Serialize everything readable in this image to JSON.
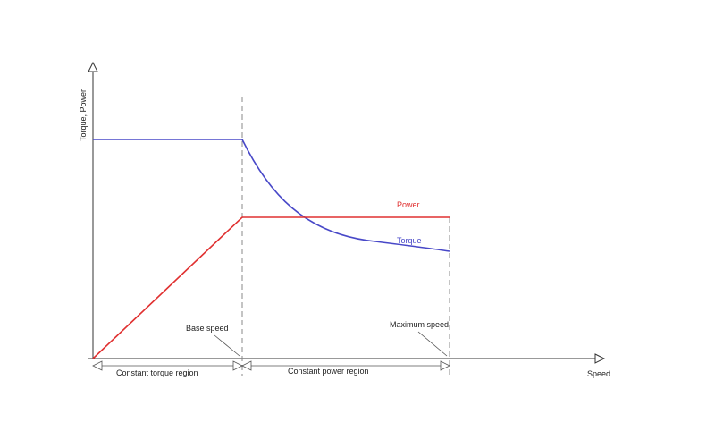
{
  "diagram": {
    "y_axis_label": "Torque, Power",
    "x_axis_label": "Speed",
    "curves": {
      "power": {
        "label": "Power",
        "color": "#e03030"
      },
      "torque": {
        "label": "Torque",
        "color": "#4848c8"
      }
    },
    "markers": {
      "base_speed": "Base speed",
      "maximum_speed": "Maximum speed"
    },
    "regions": {
      "constant_torque": "Constant torque region",
      "constant_power": "Constant power region"
    },
    "colors": {
      "axis": "#333333",
      "guide": "#888888"
    }
  }
}
